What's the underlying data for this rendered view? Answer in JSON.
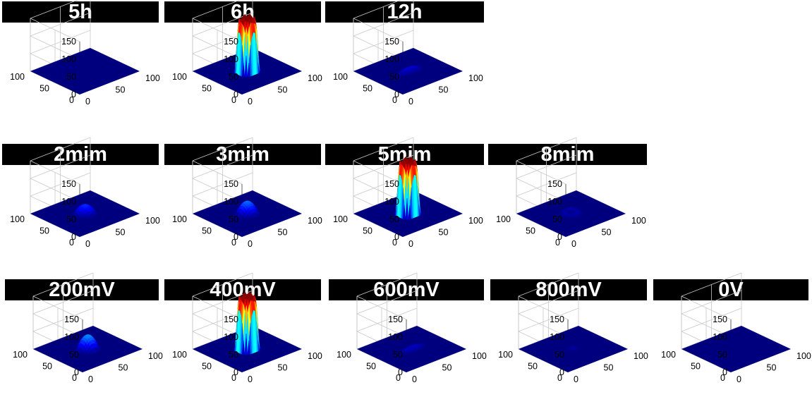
{
  "panel_titles": {
    "row1": [
      "5h",
      "6h",
      "12h"
    ],
    "row2": [
      "2mim",
      "3mim",
      "5mim",
      "8mim"
    ],
    "row3": [
      "200mV",
      "400mV",
      "600mV",
      "800mV",
      "0V"
    ]
  },
  "colors": {
    "title_background": "#000000",
    "title_text": "#ffffff",
    "floor": "#00007f",
    "colormap": "jet"
  },
  "chart_data": [
    {
      "type": "surface3d",
      "title": "5h",
      "zlim": [
        0,
        150
      ],
      "zticks": [
        0,
        50,
        100,
        150
      ],
      "xticks": [
        0,
        50,
        100
      ],
      "yticks": [
        0,
        50,
        100
      ],
      "peak_height": 0,
      "footprint": "none"
    },
    {
      "type": "surface3d",
      "title": "6h",
      "zlim": [
        0,
        150
      ],
      "zticks": [
        0,
        50,
        100,
        150
      ],
      "xticks": [
        0,
        50,
        100
      ],
      "yticks": [
        0,
        50,
        100
      ],
      "peak_height": 150,
      "footprint": "round"
    },
    {
      "type": "surface3d",
      "title": "12h",
      "zlim": [
        0,
        150
      ],
      "zticks": [
        0,
        50,
        100,
        150
      ],
      "xticks": [
        0,
        50,
        100
      ],
      "yticks": [
        0,
        50,
        100
      ],
      "peak_height": 12,
      "footprint": "elongated"
    },
    {
      "type": "surface3d",
      "title": "2mim",
      "zlim": [
        0,
        150
      ],
      "zticks": [
        0,
        50,
        100,
        150
      ],
      "xticks": [
        0,
        50,
        100
      ],
      "yticks": [
        0,
        50,
        100
      ],
      "peak_height": 25,
      "footprint": "round"
    },
    {
      "type": "surface3d",
      "title": "3mim",
      "zlim": [
        0,
        150
      ],
      "zticks": [
        0,
        50,
        100,
        150
      ],
      "xticks": [
        0,
        50,
        100
      ],
      "yticks": [
        0,
        50,
        100
      ],
      "peak_height": 35,
      "footprint": "round"
    },
    {
      "type": "surface3d",
      "title": "5mim",
      "zlim": [
        0,
        150
      ],
      "zticks": [
        0,
        50,
        100,
        150
      ],
      "xticks": [
        0,
        50,
        100
      ],
      "yticks": [
        0,
        50,
        100
      ],
      "peak_height": 150,
      "footprint": "round"
    },
    {
      "type": "surface3d",
      "title": "8mim",
      "zlim": [
        0,
        150
      ],
      "zticks": [
        0,
        50,
        100,
        150
      ],
      "xticks": [
        0,
        50,
        100
      ],
      "yticks": [
        0,
        50,
        100
      ],
      "peak_height": 12,
      "footprint": "ring"
    },
    {
      "type": "surface3d",
      "title": "200mV",
      "zlim": [
        0,
        150
      ],
      "zticks": [
        0,
        50,
        100,
        150
      ],
      "xticks": [
        0,
        50,
        100
      ],
      "yticks": [
        0,
        50,
        100
      ],
      "peak_height": 40,
      "footprint": "round"
    },
    {
      "type": "surface3d",
      "title": "400mV",
      "zlim": [
        0,
        150
      ],
      "zticks": [
        0,
        50,
        100,
        150
      ],
      "xticks": [
        0,
        50,
        100
      ],
      "yticks": [
        0,
        50,
        100
      ],
      "peak_height": 150,
      "footprint": "round"
    },
    {
      "type": "surface3d",
      "title": "600mV",
      "zlim": [
        0,
        150
      ],
      "zticks": [
        0,
        50,
        100,
        150
      ],
      "xticks": [
        0,
        50,
        100
      ],
      "yticks": [
        0,
        50,
        100
      ],
      "peak_height": 10,
      "footprint": "elongated"
    },
    {
      "type": "surface3d",
      "title": "800mV",
      "zlim": [
        0,
        150
      ],
      "zticks": [
        0,
        50,
        100,
        150
      ],
      "xticks": [
        0,
        50,
        100
      ],
      "yticks": [
        0,
        50,
        100
      ],
      "peak_height": 8,
      "footprint": "small"
    },
    {
      "type": "surface3d",
      "title": "0V",
      "zlim": [
        0,
        150
      ],
      "zticks": [
        0,
        50,
        100,
        150
      ],
      "xticks": [
        0,
        50,
        100
      ],
      "yticks": [
        0,
        50,
        100
      ],
      "peak_height": 0,
      "footprint": "none"
    }
  ]
}
